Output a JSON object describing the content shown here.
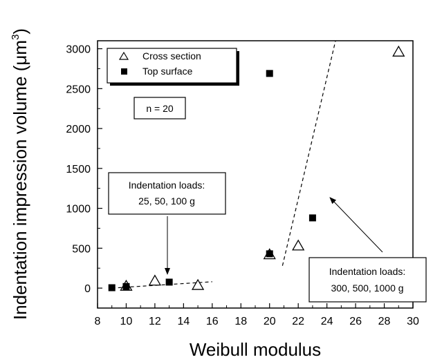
{
  "chart_data": {
    "type": "scatter",
    "xlabel": "Weibull modulus",
    "ylabel_main": "Indentation impression volume (",
    "ylabel_mu": "μm",
    "ylabel_exp": "3",
    "ylabel_close": ")",
    "xlim": [
      8,
      30
    ],
    "ylim": [
      -250,
      3100
    ],
    "x_ticks": [
      8,
      10,
      12,
      14,
      16,
      18,
      20,
      22,
      24,
      26,
      28,
      30
    ],
    "y_ticks": [
      0,
      500,
      1000,
      1500,
      2000,
      2500,
      3000
    ],
    "legend": {
      "entries": [
        "Cross section",
        "Top surface"
      ],
      "placement": "top-left"
    },
    "series": [
      {
        "name": "Cross section",
        "marker": "open-triangle",
        "points": [
          {
            "x": 10,
            "y": 25
          },
          {
            "x": 12,
            "y": 90
          },
          {
            "x": 15,
            "y": 35
          },
          {
            "x": 20,
            "y": 420
          },
          {
            "x": 22,
            "y": 530
          },
          {
            "x": 29,
            "y": 2960
          }
        ]
      },
      {
        "name": "Top surface",
        "marker": "filled-square",
        "points": [
          {
            "x": 9,
            "y": 5
          },
          {
            "x": 10,
            "y": 20
          },
          {
            "x": 13,
            "y": 75
          },
          {
            "x": 20,
            "y": 430
          },
          {
            "x": 20,
            "y": 2690
          },
          {
            "x": 23,
            "y": 880
          }
        ]
      }
    ],
    "trend_lines": [
      {
        "style": "dashed",
        "from": {
          "x": 9,
          "y": 0
        },
        "to": {
          "x": 16,
          "y": 80
        }
      },
      {
        "style": "dashed",
        "from": {
          "x": 20.9,
          "y": 280
        },
        "to": {
          "x": 24.6,
          "y": 3100
        }
      }
    ],
    "annotations": {
      "n_label": "n = 20",
      "low_load_line1": "Indentation loads:",
      "low_load_line2": "25, 50, 100 g",
      "high_load_line1": "Indentation loads:",
      "high_load_line2": "300, 500, 1000 g"
    }
  }
}
